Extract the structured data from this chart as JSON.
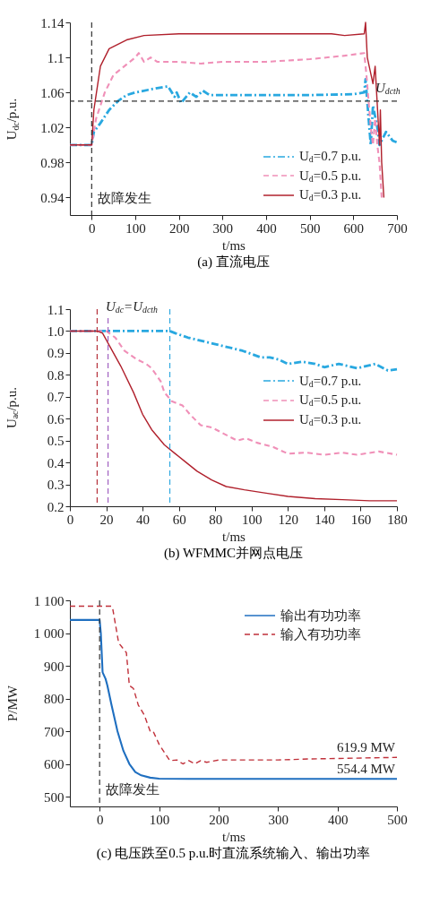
{
  "chart_data": [
    {
      "type": "line",
      "title": "(a) 直流电压",
      "xlabel": "t/ms",
      "ylabel": "U$_{dc}$/p.u.",
      "xlim": [
        -50,
        700
      ],
      "xticks": [
        0,
        100,
        200,
        300,
        400,
        500,
        600,
        700
      ],
      "ylim": [
        0.92,
        1.14
      ],
      "yticks": [
        0.94,
        0.98,
        1.02,
        1.06,
        1.1,
        1.14
      ],
      "legend": "bottom right",
      "grid": false,
      "series": [
        {
          "name": "U$_{d}$=0.7 p.u.",
          "color": "#29a8e0",
          "line_style": "dashdot",
          "x": [
            -50,
            0,
            5,
            20,
            40,
            60,
            80,
            100,
            130,
            150,
            175,
            190,
            195,
            205,
            225,
            240,
            255,
            270,
            300,
            400,
            500,
            600,
            625,
            628,
            635,
            640,
            645,
            655,
            660,
            675,
            690,
            700
          ],
          "values": [
            1.0,
            1.0,
            1.015,
            1.025,
            1.04,
            1.05,
            1.057,
            1.06,
            1.063,
            1.065,
            1.067,
            1.055,
            1.06,
            1.048,
            1.06,
            1.055,
            1.062,
            1.057,
            1.057,
            1.057,
            1.057,
            1.058,
            1.06,
            1.075,
            1.03,
            1.0,
            1.045,
            1.02,
            1.0,
            1.015,
            1.005,
            1.003
          ]
        },
        {
          "name": "U$_{d}$=0.5 p.u.",
          "color": "#f090b8",
          "line_style": "dashed",
          "x": [
            -50,
            0,
            10,
            30,
            50,
            75,
            100,
            108,
            120,
            135,
            150,
            200,
            250,
            300,
            400,
            500,
            580,
            625,
            630,
            640,
            645,
            650,
            655,
            660,
            665
          ],
          "values": [
            1.0,
            1.0,
            1.03,
            1.06,
            1.08,
            1.09,
            1.1,
            1.105,
            1.095,
            1.1,
            1.095,
            1.095,
            1.093,
            1.095,
            1.095,
            1.098,
            1.102,
            1.105,
            1.08,
            1.02,
            1.0,
            1.03,
            1.0,
            0.98,
            0.94
          ]
        },
        {
          "name": "U$_{d}$=0.3 p.u.",
          "color": "#b0202c",
          "line_style": "solid",
          "x": [
            -50,
            0,
            5,
            20,
            40,
            80,
            120,
            200,
            400,
            550,
            580,
            625,
            628,
            632,
            645,
            650,
            660,
            662,
            665,
            670
          ],
          "values": [
            1.0,
            1.0,
            1.04,
            1.09,
            1.11,
            1.12,
            1.125,
            1.127,
            1.127,
            1.127,
            1.125,
            1.127,
            1.14,
            1.1,
            1.07,
            1.09,
            1.0,
            1.04,
            0.98,
            0.94
          ]
        }
      ],
      "ref_lines": [
        {
          "axis": "x",
          "value": 0,
          "label": "故障发生",
          "color": "#333333",
          "line_style": "dashed"
        },
        {
          "axis": "y",
          "value": 1.05,
          "label": "U$_{dcth}$",
          "color": "#333333",
          "line_style": "dashed"
        }
      ]
    },
    {
      "type": "line",
      "title": "(b) WFMMC并网点电压",
      "xlabel": "t/ms",
      "ylabel": "U$_{ac}$/p.u.",
      "xlim": [
        0,
        180
      ],
      "xticks": [
        0,
        20,
        40,
        60,
        80,
        100,
        120,
        140,
        160,
        180
      ],
      "ylim": [
        0.2,
        1.1
      ],
      "yticks": [
        {
          "value": 0.2,
          "label": "0.2"
        },
        {
          "value": 0.3,
          "label": "0.3"
        },
        {
          "value": 0.4,
          "label": "0.4"
        },
        {
          "value": 0.5,
          "label": "0.5"
        },
        {
          "value": 0.6,
          "label": "0.6"
        },
        {
          "value": 0.7,
          "label": "0.7"
        },
        {
          "value": 0.8,
          "label": "0.8"
        },
        {
          "value": 0.9,
          "label": "0.9"
        },
        {
          "value": 1,
          "label": "1.0"
        },
        {
          "value": 1.1,
          "label": "1.1"
        }
      ],
      "legend": "right",
      "grid": false,
      "series": [
        {
          "name": "U$_{d}$=0.7 p.u.",
          "color": "#29a8e0",
          "line_style": "dashdot",
          "x": [
            0,
            55,
            58,
            65,
            75,
            85,
            95,
            105,
            110,
            115,
            120,
            128,
            135,
            140,
            148,
            158,
            168,
            175,
            180
          ],
          "values": [
            1.0,
            1.0,
            0.99,
            0.97,
            0.95,
            0.93,
            0.91,
            0.88,
            0.88,
            0.87,
            0.85,
            0.86,
            0.85,
            0.835,
            0.85,
            0.83,
            0.85,
            0.82,
            0.825
          ]
        },
        {
          "name": "U$_{d}$=0.5 p.u.",
          "color": "#f090b8",
          "line_style": "dashed",
          "x": [
            0,
            20,
            25,
            30,
            37,
            42,
            45,
            50,
            52,
            56,
            62,
            66,
            72,
            78,
            85,
            92,
            97,
            103,
            112,
            120,
            130,
            140,
            150,
            158,
            170,
            180
          ],
          "values": [
            1.0,
            1.0,
            0.97,
            0.91,
            0.87,
            0.85,
            0.83,
            0.77,
            0.72,
            0.68,
            0.66,
            0.62,
            0.57,
            0.56,
            0.53,
            0.5,
            0.51,
            0.49,
            0.47,
            0.44,
            0.445,
            0.435,
            0.445,
            0.435,
            0.45,
            0.435
          ]
        },
        {
          "name": "U$_{d}$=0.3 p.u.",
          "color": "#b0202c",
          "line_style": "solid",
          "x": [
            0,
            15,
            18,
            22,
            28,
            35,
            40,
            45,
            52,
            58,
            64,
            70,
            78,
            86,
            96,
            108,
            120,
            135,
            150,
            165,
            180
          ],
          "values": [
            1.0,
            1.0,
            0.99,
            0.93,
            0.84,
            0.72,
            0.62,
            0.55,
            0.48,
            0.44,
            0.4,
            0.36,
            0.32,
            0.29,
            0.275,
            0.26,
            0.245,
            0.235,
            0.23,
            0.225,
            0.225
          ]
        }
      ],
      "ref_lines": [
        {
          "axis": "x",
          "value": 15,
          "color": "#b5303a",
          "line_style": "dashed"
        },
        {
          "axis": "x",
          "value": 21,
          "color": "#a060c0",
          "line_style": "dashed"
        },
        {
          "axis": "x",
          "value": 55,
          "color": "#30a8e0",
          "line_style": "dashed"
        }
      ],
      "annotations": [
        "U$_{dc}$=U$_{dcth}$"
      ]
    },
    {
      "type": "line",
      "title": "(c) 电压跌至0.5 p.u.时直流系统输入、输出功率",
      "xlabel": "t/ms",
      "ylabel": "P/MW",
      "xlim": [
        -50,
        500
      ],
      "xticks": [
        0,
        100,
        200,
        300,
        400,
        500
      ],
      "ylim": [
        470,
        1100
      ],
      "yticks": [
        500,
        600,
        700,
        800,
        900,
        {
          "value": 1000,
          "label": "1 000"
        },
        {
          "value": 1100,
          "label": "1 100"
        }
      ],
      "legend": "top right",
      "grid": false,
      "series": [
        {
          "name": "输出有功功率",
          "color": "#1f6fc0",
          "line_style": "solid",
          "x": [
            -50,
            0,
            2,
            5,
            10,
            13,
            20,
            30,
            40,
            50,
            60,
            70,
            85,
            100,
            150,
            300,
            500
          ],
          "values": [
            1040,
            1040,
            1000,
            880,
            860,
            840,
            780,
            700,
            640,
            600,
            575,
            565,
            558,
            555,
            554.4,
            554.4,
            554.4
          ]
        },
        {
          "name": "输入有功功率",
          "color": "#c0303a",
          "line_style": "dashed",
          "x": [
            -50,
            20,
            22,
            32,
            45,
            50,
            57,
            65,
            75,
            85,
            90,
            100,
            118,
            130,
            140,
            150,
            160,
            170,
            180,
            200,
            300,
            350,
            500
          ],
          "values": [
            1082,
            1082,
            1075,
            970,
            940,
            840,
            830,
            780,
            750,
            700,
            700,
            660,
            610,
            612,
            600,
            610,
            600,
            610,
            605,
            612,
            612,
            615,
            619.9
          ]
        }
      ],
      "ref_lines": [
        {
          "axis": "x",
          "value": 0,
          "label": "故障发生",
          "color": "#333333",
          "line_style": "dashed"
        }
      ],
      "annotations": [
        {
          "text": "619.9 MW",
          "x": 500,
          "y": 619.9
        },
        {
          "text": "554.4 MW",
          "x": 500,
          "y": 554.4
        }
      ]
    }
  ]
}
